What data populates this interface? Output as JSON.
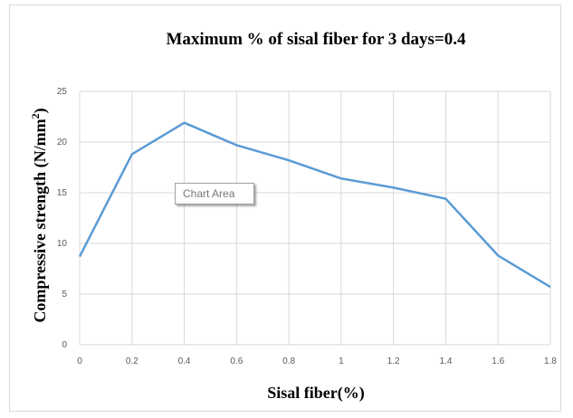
{
  "chart_data": {
    "type": "line",
    "title": "Maximum % of sisal fiber for 3 days=0.4",
    "xlabel": "Sisal fiber(%)",
    "ylabel": "Compressive strength (N/mm",
    "ylabel_superscript": "2",
    "ylabel_close": ")",
    "xlim": [
      0,
      1.8
    ],
    "ylim": [
      0,
      25
    ],
    "x_ticks": [
      "0",
      "0.2",
      "0.4",
      "0.6",
      "0.8",
      "1",
      "1.2",
      "1.4",
      "1.6",
      "1.8"
    ],
    "y_ticks": [
      "0",
      "5",
      "10",
      "15",
      "20",
      "25"
    ],
    "grid": true,
    "line_color": "#5b9bd5",
    "series": [
      {
        "x": [
          0,
          0.2,
          0.4,
          0.6,
          0.8,
          1.0,
          1.2,
          1.4,
          1.6,
          1.8
        ],
        "values": [
          8.7,
          18.8,
          21.9,
          19.7,
          18.2,
          16.4,
          15.5,
          14.4,
          8.8,
          5.7
        ]
      }
    ]
  },
  "tooltip": {
    "label": "Chart Area"
  }
}
